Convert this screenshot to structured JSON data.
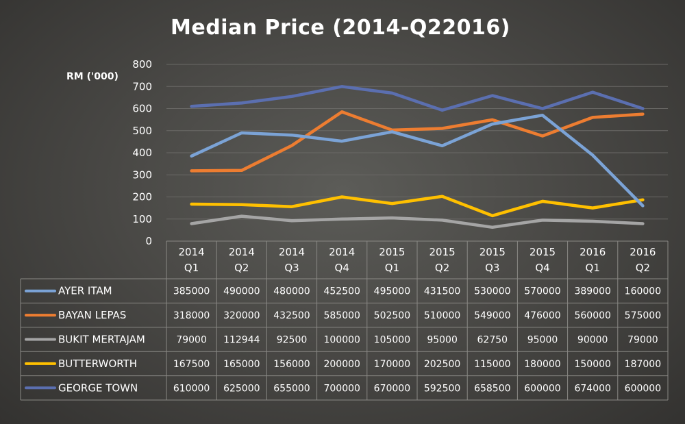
{
  "chart_data": {
    "type": "line",
    "title": "Median Price (2014-Q22016)",
    "ylabel": "RM ('000)",
    "ylim": [
      0,
      800
    ],
    "yticks": [
      "0",
      "100",
      "200",
      "300",
      "400",
      "500",
      "600",
      "700",
      "800"
    ],
    "grid": true,
    "legend": "data-table-below",
    "categories": [
      [
        "2014",
        "Q1"
      ],
      [
        "2014",
        "Q2"
      ],
      [
        "2014",
        "Q3"
      ],
      [
        "2014",
        "Q4"
      ],
      [
        "2015",
        "Q1"
      ],
      [
        "2015",
        "Q2"
      ],
      [
        "2015",
        "Q3"
      ],
      [
        "2015",
        "Q4"
      ],
      [
        "2016",
        "Q1"
      ],
      [
        "2016",
        "Q2"
      ]
    ],
    "series": [
      {
        "name": "AYER ITAM",
        "color": "#7ba3d6",
        "values": [
          385000,
          490000,
          480000,
          452500,
          495000,
          431500,
          530000,
          570000,
          389000,
          160000
        ]
      },
      {
        "name": "BAYAN LEPAS",
        "color": "#ed7d31",
        "values": [
          318000,
          320000,
          432500,
          585000,
          502500,
          510000,
          549000,
          476000,
          560000,
          575000
        ]
      },
      {
        "name": "BUKIT MERTAJAM",
        "color": "#a5a5a5",
        "values": [
          79000,
          112944,
          92500,
          100000,
          105000,
          95000,
          62750,
          95000,
          90000,
          79000
        ]
      },
      {
        "name": "BUTTERWORTH",
        "color": "#ffc000",
        "values": [
          167500,
          165000,
          156000,
          200000,
          170000,
          202500,
          115000,
          180000,
          150000,
          187000
        ]
      },
      {
        "name": "GEORGE TOWN",
        "color": "#5b6fb0",
        "values": [
          610000,
          625000,
          655000,
          700000,
          670000,
          592500,
          658500,
          600000,
          674000,
          600000
        ]
      }
    ]
  }
}
